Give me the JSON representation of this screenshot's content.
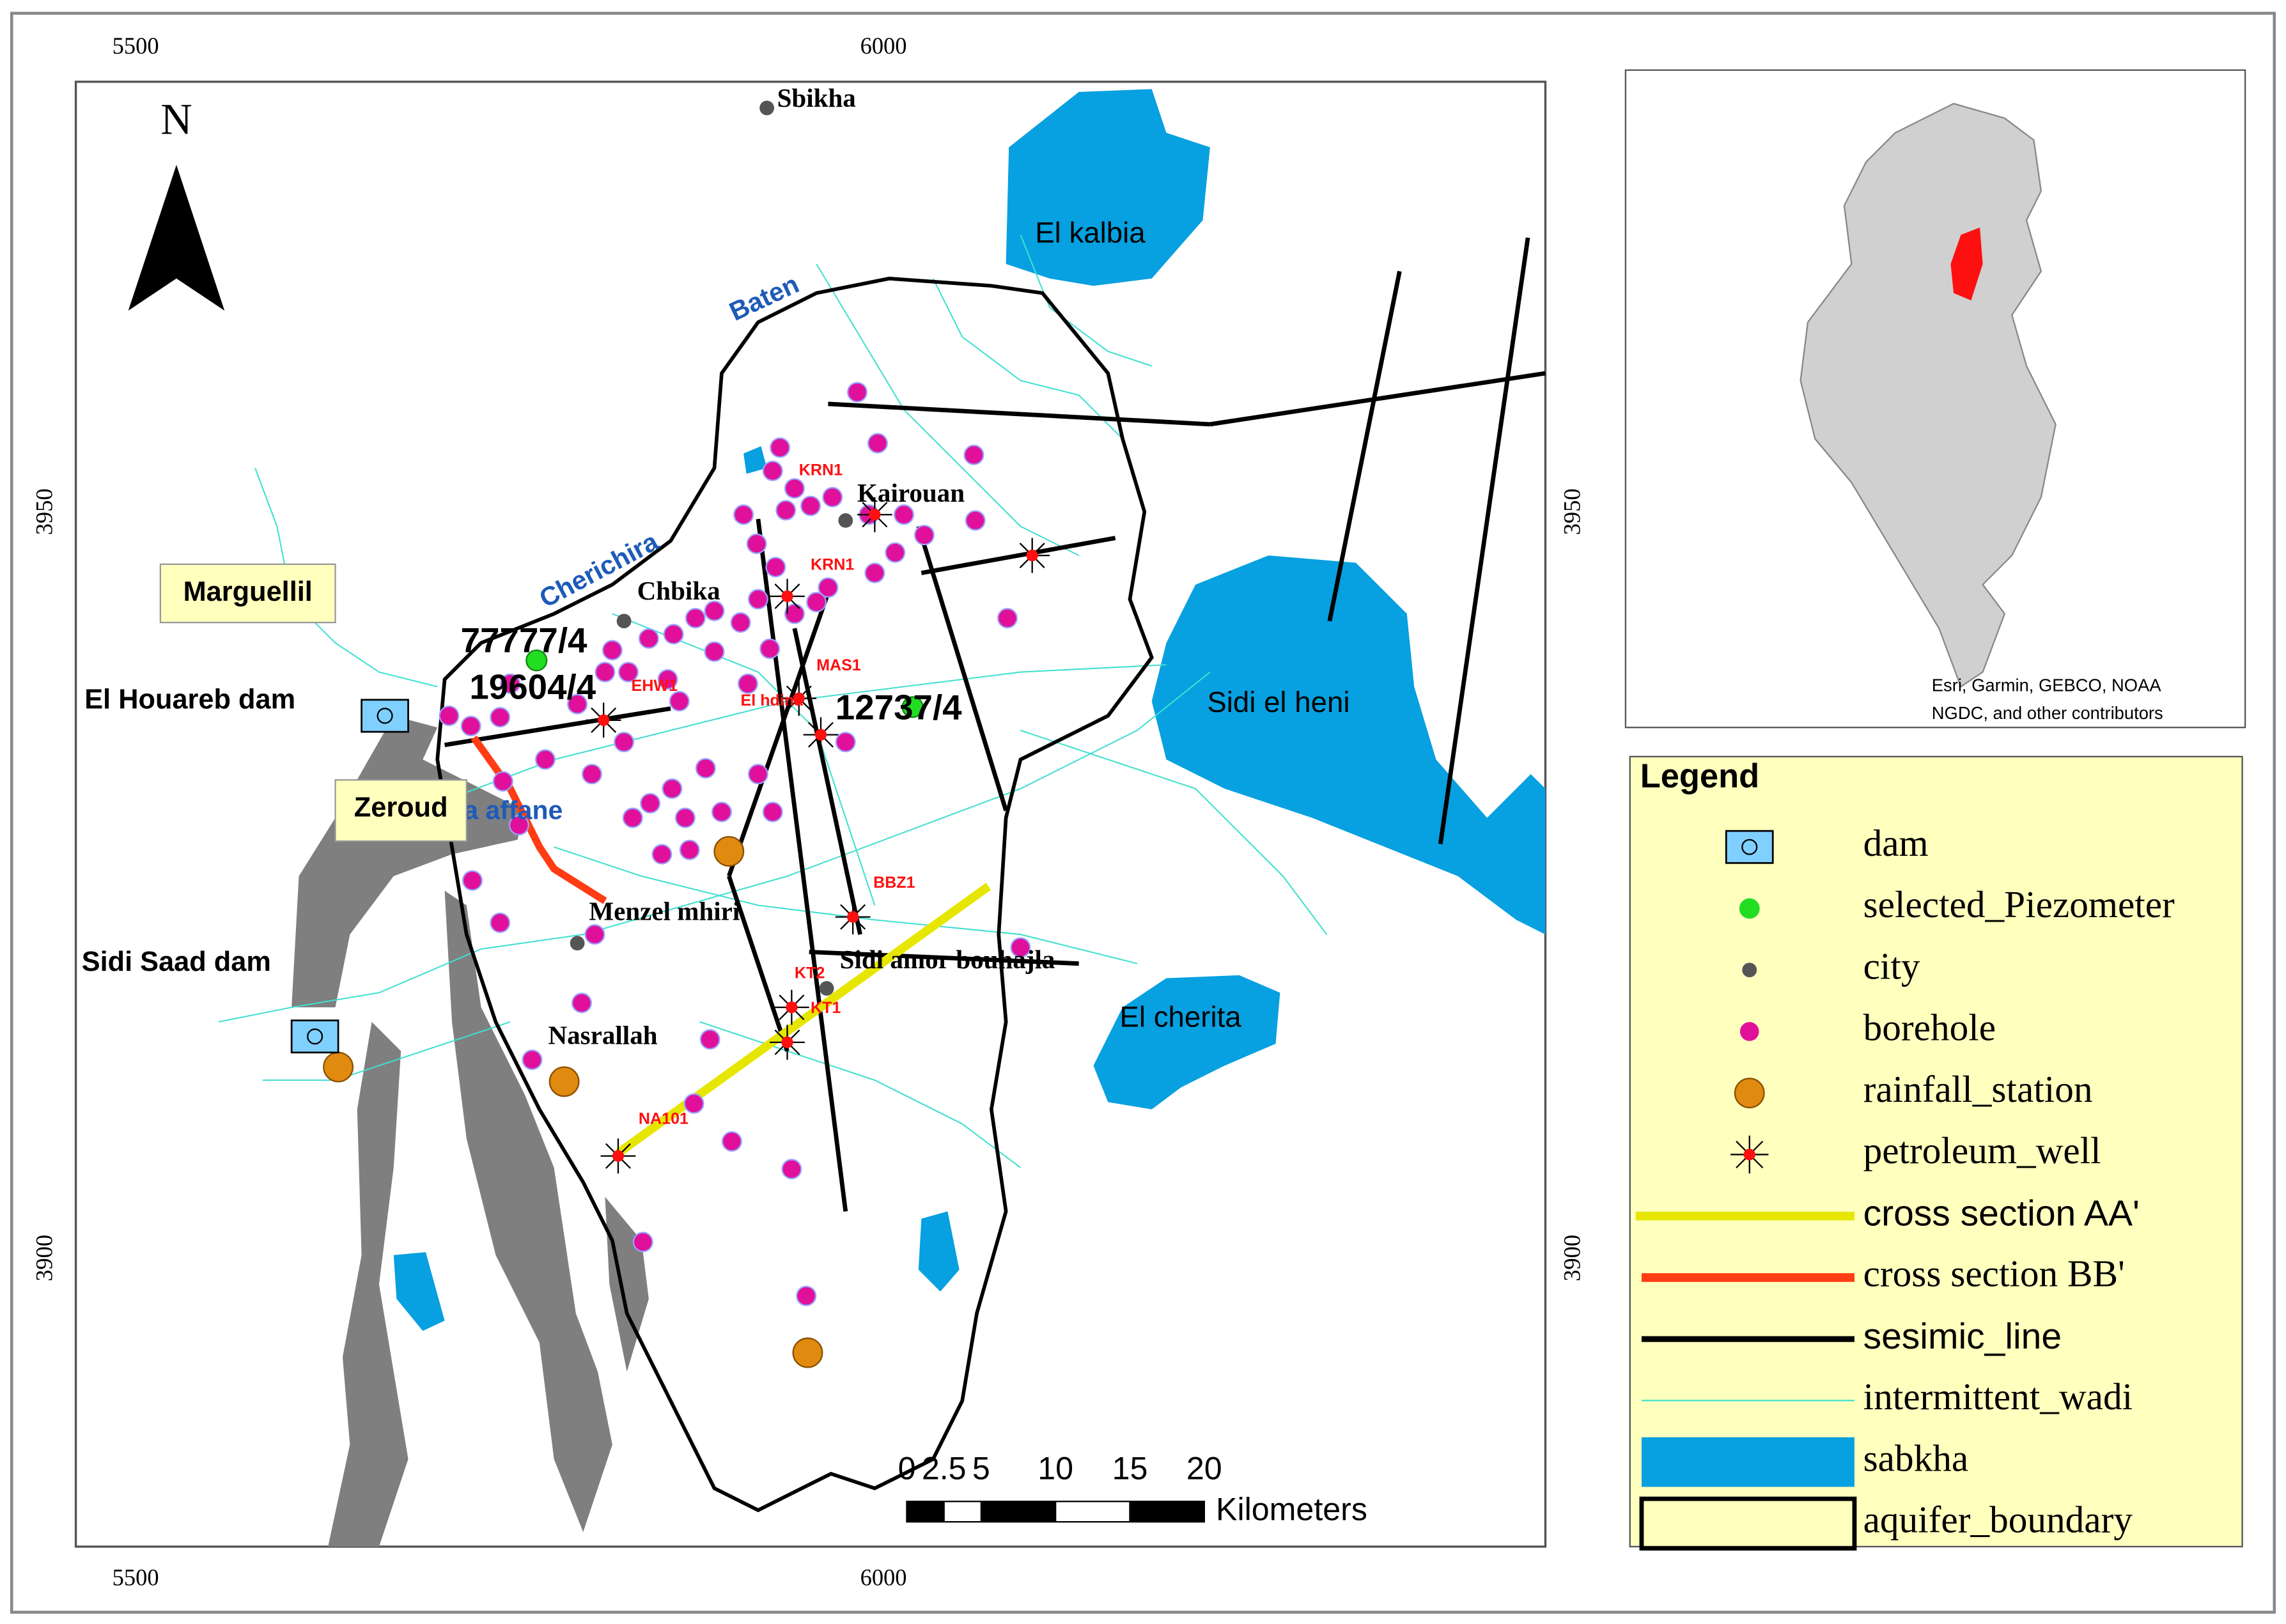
{
  "map": {
    "frame_ticks": {
      "top": [
        "5500",
        "6000"
      ],
      "bottom": [
        "5500",
        "6000"
      ],
      "left": [
        "3950",
        "3900"
      ],
      "right": [
        "3950",
        "3900"
      ]
    },
    "north_arrow": "N",
    "places": [
      "Sbikha",
      "Kairouan",
      "Chbika",
      "Menzel mhiri",
      "Nasrallah",
      "Sidi amor bouhajla"
    ],
    "water_bodies": [
      "El kalbia",
      "Sidi el heni",
      "El cherita"
    ],
    "wadis": [
      "Baten",
      "Cherichira",
      "a affane"
    ],
    "boxed_labels": [
      "Marguellil",
      "Zeroud"
    ],
    "dams": [
      "El Houareb dam",
      "Sidi Saad dam"
    ],
    "piezometers": [
      "77777/4",
      "19604/4",
      "12737/4"
    ],
    "wells": [
      "KRN1",
      "KRN1",
      "MAS1",
      "EHW1",
      "El hdina",
      "BBZ1",
      "KT2",
      "KT1",
      "NA101"
    ],
    "scale_bar": {
      "ticks": [
        0,
        2.5,
        5,
        10,
        15,
        20
      ],
      "unit": "Kilometers"
    },
    "inset_attribution": [
      "Esri, Garmin, GEBCO, NOAA",
      "NGDC, and other contributors"
    ],
    "legend": {
      "title": "Legend",
      "items": [
        "dam",
        "selected_Piezometer",
        "city",
        "borehole",
        "rainfall_station",
        "petroleum_well",
        "cross section AA'",
        "cross section  BB'",
        "sesimic_line",
        "intermittent_wadi",
        "sabkha",
        "aquifer_boundary"
      ]
    }
  }
}
